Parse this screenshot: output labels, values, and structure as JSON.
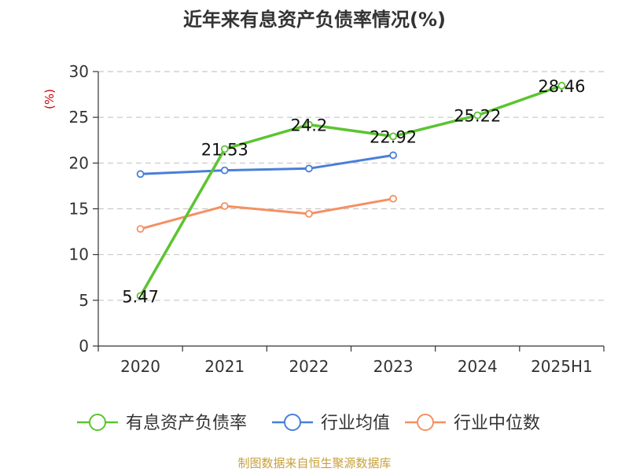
{
  "chart_data": {
    "type": "line",
    "title": "近年来有息资产负债率情况(%)",
    "ylabel": "(%)",
    "xlabel": "",
    "categories": [
      "2020",
      "2021",
      "2022",
      "2023",
      "2024",
      "2025H1"
    ],
    "ylim": [
      0,
      30
    ],
    "yticks": [
      0,
      5,
      10,
      15,
      20,
      25,
      30
    ],
    "grid": true,
    "legend_position": "bottom",
    "series": [
      {
        "name": "有息资产负债率",
        "color": "#5cc431",
        "values": [
          5.47,
          21.53,
          24.2,
          22.92,
          25.22,
          28.46
        ],
        "labels": [
          "5.47",
          "21.53",
          "24.2",
          "22.92",
          "25.22",
          "28.46"
        ]
      },
      {
        "name": "行业均值",
        "color": "#4a7fd8",
        "values": [
          18.8,
          19.2,
          19.4,
          20.85,
          null,
          null
        ]
      },
      {
        "name": "行业中位数",
        "color": "#f59062",
        "values": [
          12.8,
          15.3,
          14.45,
          16.1,
          null,
          null
        ]
      }
    ]
  },
  "source": "制图数据来自恒生聚源数据库",
  "colors": {
    "title": "#333333",
    "axis": "#333333",
    "grid": "#c8c8c8",
    "ylabel": "#cc0000",
    "source": "#c8a03c"
  }
}
